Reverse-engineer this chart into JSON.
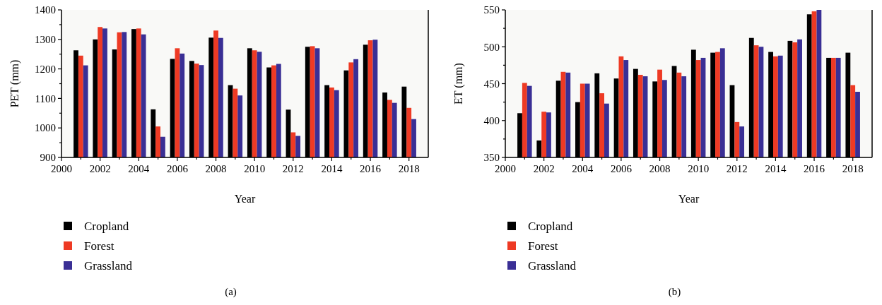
{
  "chart_data": [
    {
      "type": "bar",
      "xlabel": "Year",
      "ylabel": "PET (mm)",
      "annotations": [
        "(a)"
      ],
      "legend": "bottom",
      "grid": false,
      "x": [
        2001,
        2002,
        2003,
        2004,
        2005,
        2006,
        2007,
        2008,
        2009,
        2010,
        2011,
        2012,
        2013,
        2014,
        2015,
        2016,
        2017,
        2018
      ],
      "xlim": [
        2000,
        2019
      ],
      "xticks": [
        2000,
        {
          "value": 2001,
          "label": null
        },
        2002,
        {
          "value": 2003,
          "label": null
        },
        2004,
        {
          "value": 2005,
          "label": null
        },
        2006,
        {
          "value": 2007,
          "label": null
        },
        2008,
        {
          "value": 2009,
          "label": null
        },
        2010,
        {
          "value": 2011,
          "label": null
        },
        2012,
        {
          "value": 2013,
          "label": null
        },
        2014,
        {
          "value": 2015,
          "label": null
        },
        2016,
        {
          "value": 2017,
          "label": null
        },
        2018
      ],
      "ylim": [
        900,
        1400
      ],
      "yticks": [
        900,
        {
          "value": 950,
          "label": null
        },
        1000,
        {
          "value": 1050,
          "label": null
        },
        1100,
        {
          "value": 1150,
          "label": null
        },
        1200,
        {
          "value": 1250,
          "label": null
        },
        1300,
        {
          "value": 1350,
          "label": null
        },
        1400
      ],
      "series": [
        {
          "name": "Cropland",
          "color": "#000000",
          "values": [
            1263,
            1300,
            1266,
            1335,
            1063,
            1234,
            1227,
            1306,
            1145,
            1270,
            1205,
            1062,
            1275,
            1145,
            1195,
            1282,
            1120,
            1140
          ]
        },
        {
          "name": "Forest",
          "color": "#ee3a24",
          "values": [
            1245,
            1342,
            1324,
            1337,
            1005,
            1270,
            1218,
            1330,
            1133,
            1263,
            1212,
            985,
            1277,
            1137,
            1222,
            1297,
            1095,
            1068
          ]
        },
        {
          "name": "Grassland",
          "color": "#3a2f95",
          "values": [
            1212,
            1337,
            1325,
            1317,
            970,
            1252,
            1213,
            1305,
            1110,
            1258,
            1217,
            973,
            1270,
            1128,
            1233,
            1299,
            1085,
            1030
          ]
        }
      ]
    },
    {
      "type": "bar",
      "xlabel": "Year",
      "ylabel": "ET (mm)",
      "annotations": [
        "(b)"
      ],
      "legend": "bottom",
      "grid": false,
      "x": [
        2001,
        2002,
        2003,
        2004,
        2005,
        2006,
        2007,
        2008,
        2009,
        2010,
        2011,
        2012,
        2013,
        2014,
        2015,
        2016,
        2017,
        2018
      ],
      "xlim": [
        2000,
        2019
      ],
      "xticks": [
        2000,
        {
          "value": 2001,
          "label": null
        },
        2002,
        {
          "value": 2003,
          "label": null
        },
        2004,
        {
          "value": 2005,
          "label": null
        },
        2006,
        {
          "value": 2007,
          "label": null
        },
        2008,
        {
          "value": 2009,
          "label": null
        },
        2010,
        {
          "value": 2011,
          "label": null
        },
        2012,
        {
          "value": 2013,
          "label": null
        },
        2014,
        {
          "value": 2015,
          "label": null
        },
        2016,
        {
          "value": 2017,
          "label": null
        },
        2018
      ],
      "ylim": [
        350,
        550
      ],
      "yticks": [
        350,
        {
          "value": 375,
          "label": null
        },
        400,
        {
          "value": 425,
          "label": null
        },
        450,
        {
          "value": 475,
          "label": null
        },
        500,
        {
          "value": 525,
          "label": null
        },
        550
      ],
      "series": [
        {
          "name": "Cropland",
          "color": "#000000",
          "values": [
            410,
            373,
            454,
            425,
            464,
            457,
            470,
            453,
            474,
            496,
            492,
            448,
            512,
            493,
            508,
            544,
            485,
            492
          ]
        },
        {
          "name": "Forest",
          "color": "#ee3a24",
          "values": [
            451,
            412,
            466,
            450,
            437,
            487,
            462,
            469,
            465,
            482,
            493,
            398,
            502,
            487,
            506,
            548,
            485,
            448
          ]
        },
        {
          "name": "Grassland",
          "color": "#3a2f95",
          "values": [
            447,
            411,
            465,
            450,
            423,
            482,
            460,
            455,
            460,
            485,
            498,
            392,
            500,
            488,
            510,
            550,
            485,
            439
          ]
        }
      ]
    }
  ]
}
